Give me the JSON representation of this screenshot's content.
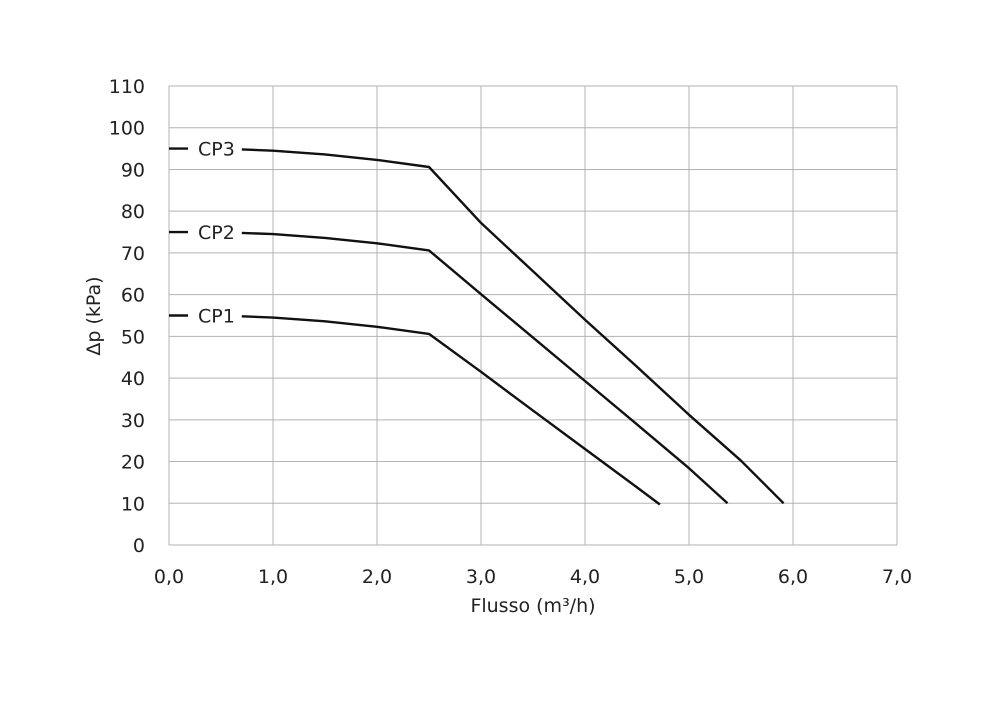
{
  "chart_data": {
    "type": "line",
    "xlabel": "Flusso (m³/h)",
    "ylabel": "Δp (kPa)",
    "xlim": [
      0,
      7
    ],
    "ylim": [
      0,
      110
    ],
    "xticks": [
      "0,0",
      "1,0",
      "2,0",
      "3,0",
      "4,0",
      "5,0",
      "6,0",
      "7,0"
    ],
    "yticks": [
      "0",
      "10",
      "20",
      "30",
      "40",
      "50",
      "60",
      "70",
      "80",
      "90",
      "100",
      "110"
    ],
    "grid": true,
    "series": [
      {
        "name": "CP1",
        "x": [
          0.0,
          0.7,
          1.0,
          1.5,
          2.0,
          2.5,
          3.0,
          3.5,
          4.0,
          4.5,
          4.72
        ],
        "y": [
          55.0,
          54.8,
          54.5,
          53.6,
          52.3,
          50.6,
          41.5,
          32.2,
          23.0,
          13.8,
          9.7
        ]
      },
      {
        "name": "CP2",
        "x": [
          0.0,
          0.7,
          1.0,
          1.5,
          2.0,
          2.5,
          3.0,
          3.5,
          4.0,
          4.5,
          5.0,
          5.37
        ],
        "y": [
          75.0,
          74.8,
          74.5,
          73.6,
          72.3,
          70.6,
          60.1,
          49.7,
          39.3,
          28.9,
          18.4,
          10.0
        ]
      },
      {
        "name": "CP3",
        "x": [
          0.0,
          0.7,
          1.0,
          1.5,
          2.0,
          2.5,
          3.0,
          3.5,
          4.0,
          4.5,
          5.0,
          5.5,
          5.91
        ],
        "y": [
          95.0,
          94.8,
          94.5,
          93.6,
          92.3,
          90.6,
          77.2,
          65.6,
          54.0,
          42.7,
          31.2,
          20.2,
          10.0
        ]
      }
    ]
  }
}
